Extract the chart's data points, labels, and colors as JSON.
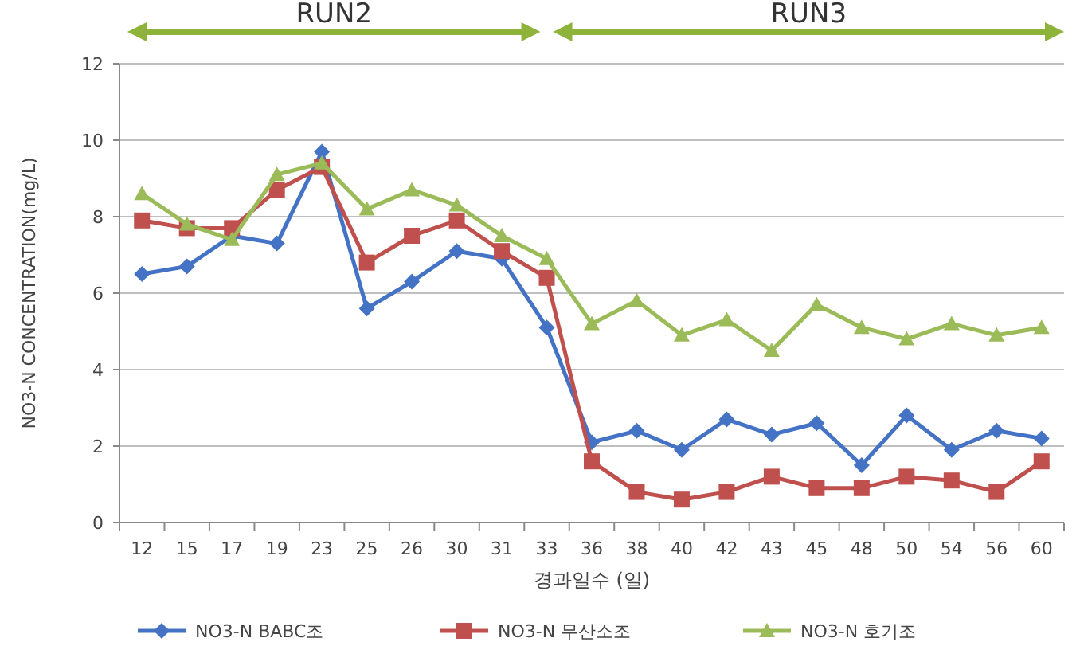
{
  "chart_data": {
    "type": "line",
    "xlabel": "경과일수 (일)",
    "ylabel": "NO3-N  CONCENTRATION(mg/L)",
    "categories": [
      "12",
      "15",
      "17",
      "19",
      "23",
      "25",
      "26",
      "30",
      "31",
      "33",
      "36",
      "38",
      "40",
      "42",
      "43",
      "45",
      "48",
      "50",
      "54",
      "56",
      "60"
    ],
    "series": [
      {
        "name": "NO3-N BABC조",
        "color": "#4472c4",
        "marker": "diamond",
        "values": [
          6.5,
          6.7,
          7.5,
          7.3,
          9.7,
          5.6,
          6.3,
          7.1,
          6.9,
          5.1,
          2.1,
          2.4,
          1.9,
          2.7,
          2.3,
          2.6,
          1.5,
          2.8,
          1.9,
          2.4,
          2.2
        ]
      },
      {
        "name": "NO3-N 무산소조",
        "color": "#c0504d",
        "marker": "square",
        "values": [
          7.9,
          7.7,
          7.7,
          8.7,
          9.3,
          6.8,
          7.5,
          7.9,
          7.1,
          6.4,
          1.6,
          0.8,
          0.6,
          0.8,
          1.2,
          0.9,
          0.9,
          1.2,
          1.1,
          0.8,
          1.6
        ]
      },
      {
        "name": "NO3-N 호기조",
        "color": "#9bbb59",
        "marker": "triangle",
        "values": [
          8.6,
          7.8,
          7.4,
          9.1,
          9.4,
          8.2,
          8.7,
          8.3,
          7.5,
          6.9,
          5.2,
          5.8,
          4.9,
          5.3,
          4.5,
          5.7,
          5.1,
          4.8,
          5.2,
          4.9,
          5.1
        ]
      }
    ],
    "ylim": [
      0,
      12
    ],
    "yticks": [
      0,
      2,
      4,
      6,
      8,
      10,
      12
    ],
    "grid": "y",
    "legend": "bottom",
    "annotations": [
      "RUN2",
      "RUN3"
    ]
  }
}
